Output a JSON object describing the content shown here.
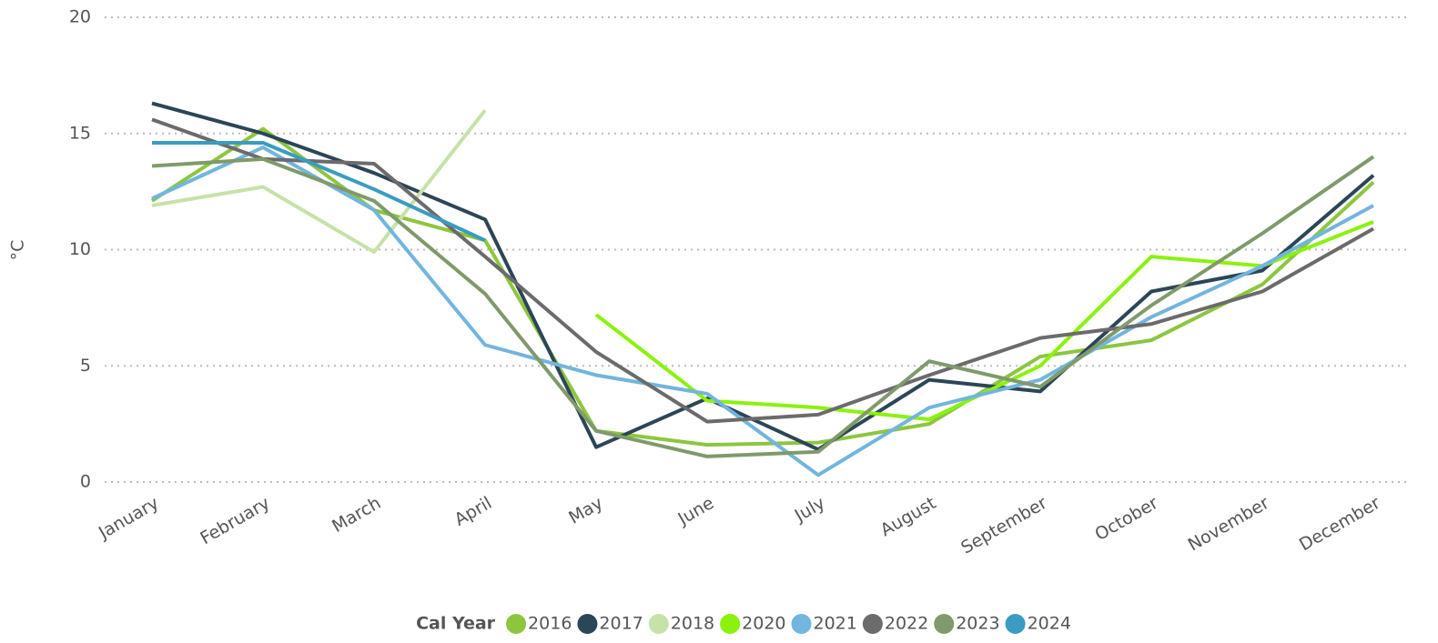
{
  "chart_data": {
    "type": "line",
    "y_label": "°C",
    "legend_title": "Cal Year",
    "categories": [
      "January",
      "February",
      "March",
      "April",
      "May",
      "June",
      "July",
      "August",
      "September",
      "October",
      "November",
      "December"
    ],
    "ylim": [
      0,
      20
    ],
    "yticks": [
      0,
      5,
      10,
      15,
      20
    ],
    "grid": true,
    "legend": "bottom",
    "series": [
      {
        "name": "2016",
        "color": "#8cc63f",
        "values": [
          12.1,
          15.2,
          11.7,
          10.4,
          2.2,
          1.6,
          1.7,
          2.5,
          5.4,
          6.1,
          8.5,
          12.9
        ]
      },
      {
        "name": "2017",
        "color": "#2b4657",
        "values": [
          16.3,
          15.0,
          13.3,
          11.3,
          1.5,
          3.6,
          1.4,
          4.4,
          3.9,
          8.2,
          9.1,
          13.2
        ]
      },
      {
        "name": "2018",
        "color": "#c6e2a8",
        "values": [
          11.9,
          12.7,
          9.9,
          16.0,
          null,
          null,
          null,
          null,
          null,
          null,
          null,
          null
        ]
      },
      {
        "name": "2020",
        "color": "#8af20c",
        "values": [
          null,
          null,
          null,
          null,
          7.2,
          3.5,
          3.2,
          2.7,
          5.0,
          9.7,
          9.3,
          11.2
        ]
      },
      {
        "name": "2021",
        "color": "#72b5de",
        "values": [
          12.2,
          14.4,
          11.7,
          5.9,
          4.6,
          3.8,
          0.3,
          3.2,
          4.4,
          7.1,
          9.3,
          11.9
        ]
      },
      {
        "name": "2022",
        "color": "#6b6b6b",
        "values": [
          15.6,
          13.9,
          13.7,
          9.7,
          5.6,
          2.6,
          2.9,
          4.6,
          6.2,
          6.8,
          8.2,
          10.9
        ]
      },
      {
        "name": "2023",
        "color": "#7f9a6b",
        "values": [
          13.6,
          13.9,
          12.1,
          8.1,
          2.2,
          1.1,
          1.3,
          5.2,
          4.1,
          7.6,
          10.7,
          14.0
        ]
      },
      {
        "name": "2024",
        "color": "#3a9cc0",
        "values": [
          14.6,
          14.6,
          12.6,
          10.4,
          null,
          null,
          null,
          null,
          null,
          null,
          null,
          null
        ]
      }
    ]
  }
}
